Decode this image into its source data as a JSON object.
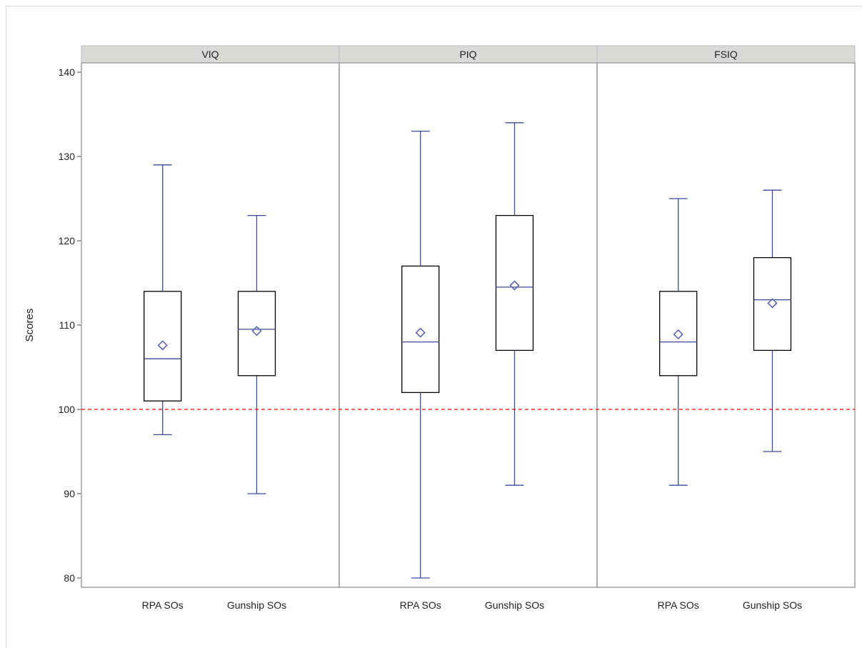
{
  "chart_data": {
    "type": "box",
    "ylabel": "Scores",
    "ylim": [
      79,
      141
    ],
    "yticks": [
      80,
      90,
      100,
      110,
      120,
      130,
      140
    ],
    "reference_line": {
      "y": 100,
      "color": "#ff0000",
      "style": "dashed"
    },
    "categories": [
      "RPA SOs",
      "Gunship SOs"
    ],
    "panels": [
      {
        "label": "VIQ",
        "boxes": [
          {
            "category": "RPA SOs",
            "min": 97,
            "q1": 101,
            "median": 106,
            "q3": 114,
            "max": 129,
            "mean": 107.6
          },
          {
            "category": "Gunship SOs",
            "min": 90,
            "q1": 104,
            "median": 109.5,
            "q3": 114,
            "max": 123,
            "mean": 109.3
          }
        ]
      },
      {
        "label": "PIQ",
        "boxes": [
          {
            "category": "RPA SOs",
            "min": 80,
            "q1": 102,
            "median": 108,
            "q3": 117,
            "max": 133,
            "mean": 109.1
          },
          {
            "category": "Gunship SOs",
            "min": 91,
            "q1": 107,
            "median": 114.5,
            "q3": 123,
            "max": 134,
            "mean": 114.7
          }
        ]
      },
      {
        "label": "FSIQ",
        "boxes": [
          {
            "category": "RPA SOs",
            "min": 91,
            "q1": 104,
            "median": 108,
            "q3": 114,
            "max": 125,
            "mean": 108.9
          },
          {
            "category": "Gunship SOs",
            "min": 95,
            "q1": 107,
            "median": 113,
            "q3": 118,
            "max": 126,
            "mean": 112.6
          }
        ]
      }
    ],
    "colors": {
      "whisker": "#3a4a9e",
      "median": "#3a4a9e",
      "mean_marker": "#5a67b8",
      "box_outline": "#000000",
      "strip_fill": "#d9d9d5",
      "panel_border": "#a0a0a0"
    }
  }
}
